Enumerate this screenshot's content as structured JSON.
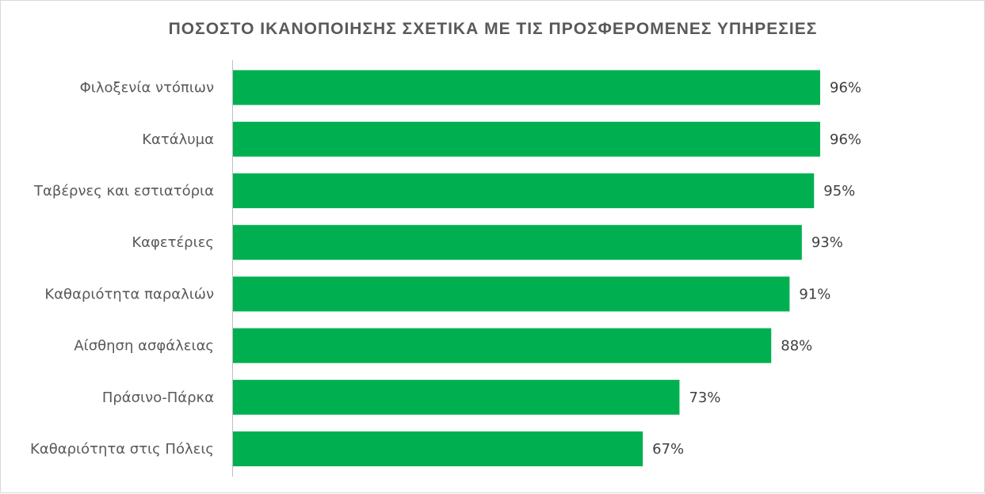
{
  "chart_data": {
    "type": "bar",
    "orientation": "horizontal",
    "title": "ΠΟΣΟΣΤΟ ΙΚΑΝΟΠΟΙΗΣΗΣ ΣΧΕΤΙΚΑ ΜΕ ΤΙΣ ΠΡΟΣΦΕΡΟΜΕΝΕΣ ΥΠΗΡΕΣΙΕΣ",
    "categories": [
      "Φιλοξενία ντόπιων",
      "Κατάλυμα",
      "Ταβέρνες και εστιατόρια",
      "Καφετέριες",
      "Καθαριότητα παραλιών",
      "Αίσθηση ασφάλειας",
      "Πράσινο-Πάρκα",
      "Καθαριότητα στις Πόλεις"
    ],
    "values": [
      96,
      96,
      95,
      93,
      91,
      88,
      73,
      67
    ],
    "data_labels": [
      "96%",
      "96%",
      "95%",
      "93%",
      "91%",
      "88%",
      "73%",
      "67%"
    ],
    "xlim": [
      0,
      100
    ],
    "unit": "%",
    "grid": false,
    "legend": "none",
    "bar_color": "#00b050"
  }
}
